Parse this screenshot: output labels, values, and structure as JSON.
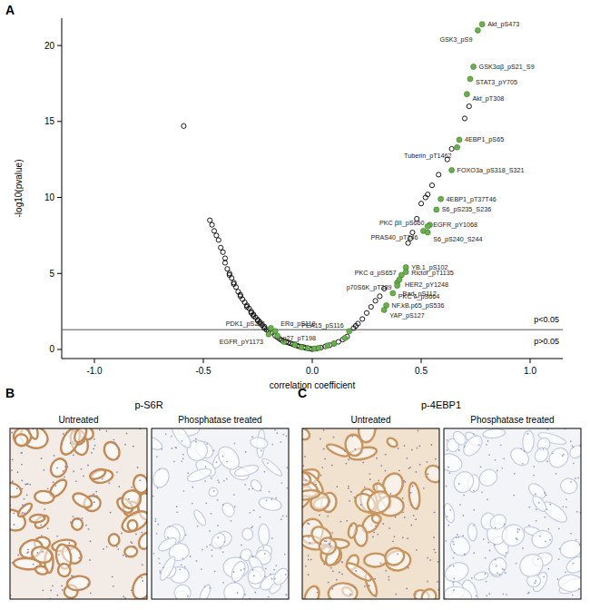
{
  "panel_label": "A",
  "chart_data": {
    "type": "scatter",
    "x_label": "correlation coefficient",
    "y_label": "-log10(pvalue)",
    "xlim": [
      -1.15,
      1.15
    ],
    "ylim": [
      -0.6,
      21.8
    ],
    "xticks": [
      {
        "value": -1,
        "label": "-1.0"
      },
      {
        "value": -0.5,
        "label": "-0.5"
      },
      {
        "value": 0,
        "label": "0.0"
      },
      {
        "value": 0.5,
        "label": "0.5"
      },
      {
        "value": 1,
        "label": "1.0"
      }
    ],
    "yticks": [
      0,
      5,
      10,
      15,
      20
    ],
    "grid": false,
    "threshold": 1.301,
    "annotations": [
      "p<0.05",
      "p>0.05"
    ],
    "series": [
      {
        "color": "#6ab04c",
        "marker": "filled",
        "labels": [
          "Akt_pS473",
          "GSK3_pS9",
          "GSK3αβ_pS21_S9",
          "STAT3_pY705",
          "Akt_pT308",
          "4EBP1_pS65",
          "Tuberin_pT1462",
          "FOXO3a_pS318_S321",
          "4EBP1_pT37T46",
          "S6_pS235_S236",
          "PKC βII_pS660",
          "EGFR_pY1068",
          "PRAS40_pT246",
          "S6_pS240_S244",
          "YB.1_pS102",
          "PKC α_pS657",
          "Rictor_pT1135",
          "p70S6K_pT389",
          "HER2_pY1248",
          "Bad_pS112",
          "PKC δ_pS664",
          "NF.kB.p65_pS536",
          "YAP_pS127",
          "PEA15_pS116",
          "PDK1_pS241",
          "ERα_pS118",
          "EGFR_pY1173",
          "p27_pT198",
          null,
          null,
          null,
          null,
          null,
          null,
          null,
          null,
          null
        ],
        "x": [
          0.78,
          0.76,
          0.74,
          0.725,
          0.71,
          0.675,
          0.665,
          0.64,
          0.59,
          0.57,
          0.54,
          0.53,
          0.51,
          0.53,
          0.43,
          0.41,
          0.43,
          0.39,
          0.4,
          0.39,
          0.37,
          0.34,
          0.33,
          0.17,
          -0.19,
          -0.17,
          -0.2,
          -0.16,
          -0.13,
          -0.08,
          -0.05,
          -0.02,
          0.01,
          0.03,
          0.07,
          0.1,
          0.15
        ],
        "values": [
          21.4,
          21.0,
          18.6,
          17.8,
          16.8,
          13.8,
          13.3,
          11.8,
          9.9,
          9.2,
          8.2,
          8.1,
          7.8,
          7.7,
          5.4,
          4.9,
          5.1,
          4.4,
          4.6,
          4.2,
          3.7,
          2.9,
          2.6,
          1.2,
          1.4,
          1.2,
          1.0,
          0.9,
          0.5,
          0.3,
          0.15,
          0.08,
          0.05,
          0.1,
          0.25,
          0.4,
          0.75
        ]
      },
      {
        "color": "#000000",
        "marker": "open",
        "x": [
          -0.59,
          -0.47,
          -0.46,
          -0.45,
          -0.44,
          -0.43,
          -0.42,
          -0.41,
          -0.4,
          -0.4,
          -0.39,
          -0.38,
          -0.37,
          -0.36,
          -0.35,
          -0.34,
          -0.33,
          -0.32,
          -0.31,
          -0.3,
          -0.29,
          -0.28,
          -0.27,
          -0.26,
          -0.25,
          -0.24,
          -0.23,
          -0.22,
          -0.21,
          -0.2,
          -0.19,
          -0.17,
          -0.16,
          -0.15,
          -0.14,
          -0.13,
          -0.12,
          -0.11,
          -0.1,
          -0.09,
          -0.08,
          -0.07,
          -0.06,
          -0.05,
          -0.04,
          -0.03,
          -0.02,
          -0.01,
          0.0,
          -0.38,
          -0.36,
          -0.33,
          -0.3,
          -0.28,
          -0.25,
          -0.22,
          -0.27,
          -0.24,
          0.02,
          0.04,
          0.06,
          0.08,
          0.1,
          0.12,
          0.14,
          0.16,
          0.19,
          0.2,
          0.21,
          0.23,
          0.25,
          0.27,
          0.29,
          0.31,
          0.33,
          0.44,
          0.45,
          0.46,
          0.48,
          0.5,
          0.52,
          0.53,
          0.55,
          0.58,
          0.62,
          0.64,
          0.7,
          0.72
        ],
        "values": [
          14.7,
          8.5,
          8.2,
          7.8,
          7.5,
          7.2,
          6.7,
          6.4,
          6.0,
          5.7,
          5.3,
          5.0,
          4.7,
          4.4,
          4.1,
          3.8,
          3.6,
          3.3,
          3.1,
          2.9,
          2.7,
          2.5,
          2.3,
          2.1,
          1.9,
          1.8,
          1.6,
          1.4,
          1.3,
          1.2,
          1.1,
          0.9,
          0.8,
          0.7,
          0.6,
          0.55,
          0.5,
          0.45,
          0.4,
          0.35,
          0.3,
          0.25,
          0.2,
          0.18,
          0.15,
          0.1,
          0.08,
          0.05,
          0.02,
          4.9,
          4.3,
          3.5,
          2.8,
          2.4,
          1.95,
          1.5,
          2.2,
          1.7,
          0.06,
          0.12,
          0.2,
          0.28,
          0.38,
          0.5,
          0.65,
          0.85,
          1.4,
          1.55,
          1.7,
          2.0,
          2.4,
          2.8,
          3.2,
          3.5,
          4.0,
          7.0,
          7.3,
          7.7,
          8.6,
          9.6,
          10.0,
          10.2,
          10.8,
          11.5,
          12.5,
          13.2,
          15.2,
          16.0
        ]
      }
    ]
  },
  "images": [
    {
      "panel": "B",
      "title": "p-S6R",
      "captions": [
        "Untreated",
        "Phosphatase treated"
      ]
    },
    {
      "panel": "C",
      "title": "p-4EBP1",
      "captions": [
        "Untreated",
        "Phosphatase treated"
      ]
    }
  ]
}
